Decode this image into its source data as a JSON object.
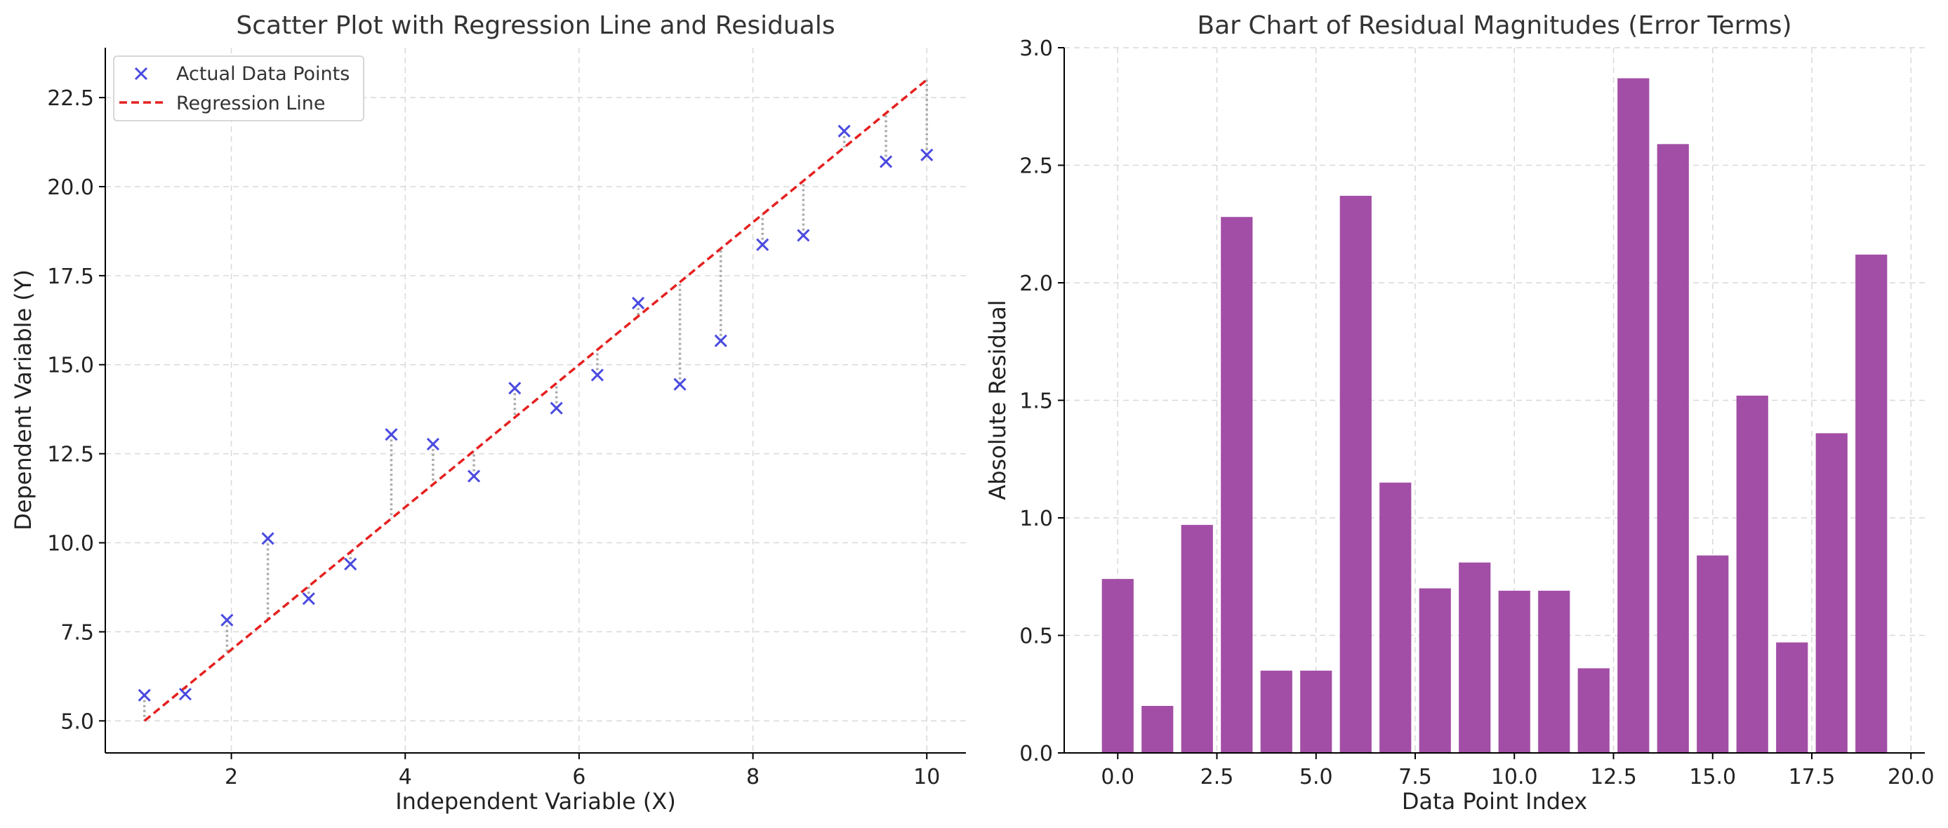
{
  "chart_data": [
    {
      "type": "scatter",
      "title": "Scatter Plot with Regression Line and Residuals",
      "xlabel": "Independent Variable (X)",
      "ylabel": "Dependent Variable (Y)",
      "xlim": [
        0.55,
        10.45
      ],
      "ylim": [
        4.1,
        23.9
      ],
      "xticks": [
        2,
        4,
        6,
        8,
        10
      ],
      "yticks": [
        5.0,
        7.5,
        10.0,
        12.5,
        15.0,
        17.5,
        20.0,
        22.5
      ],
      "grid": true,
      "legend_position": "upper-left",
      "series": [
        {
          "name": "Actual Data Points",
          "marker": "x",
          "color": "#4a4ae0",
          "x": [
            1.0,
            1.47,
            1.95,
            2.42,
            2.89,
            3.37,
            3.84,
            4.32,
            4.79,
            5.26,
            5.74,
            6.21,
            6.68,
            7.16,
            7.63,
            8.11,
            8.58,
            9.05,
            9.53,
            10.0
          ],
          "y": [
            5.72,
            5.75,
            7.83,
            10.12,
            8.43,
            9.4,
            13.04,
            12.77,
            11.87,
            14.34,
            13.78,
            14.71,
            16.73,
            14.45,
            15.67,
            18.37,
            18.63,
            21.56,
            20.7,
            20.89
          ]
        },
        {
          "name": "Regression Line",
          "style": "dashed",
          "color": "#e52020",
          "x": [
            1.0,
            10.0
          ],
          "y": [
            5.0,
            23.0
          ]
        }
      ],
      "residual_color": "#aaaaaa"
    },
    {
      "type": "bar",
      "title": "Bar Chart of Residual Magnitudes (Error Terms)",
      "xlabel": "Data Point Index",
      "ylabel": "Absolute Residual",
      "xlim": [
        -1.35,
        20.35
      ],
      "ylim": [
        0,
        3.0
      ],
      "xticks": [
        0.0,
        2.5,
        5.0,
        7.5,
        10.0,
        12.5,
        15.0,
        17.5,
        20.0
      ],
      "yticks": [
        0.0,
        0.5,
        1.0,
        1.5,
        2.0,
        2.5,
        3.0
      ],
      "grid": true,
      "color": "#a24ea6",
      "categories": [
        0,
        1,
        2,
        3,
        4,
        5,
        6,
        7,
        8,
        9,
        10,
        11,
        12,
        13,
        14,
        15,
        16,
        17,
        18,
        19
      ],
      "values": [
        0.74,
        0.2,
        0.97,
        2.28,
        0.35,
        0.35,
        2.37,
        1.15,
        0.7,
        0.81,
        0.69,
        0.69,
        0.36,
        2.87,
        2.59,
        0.84,
        1.52,
        0.47,
        1.36,
        2.12
      ]
    }
  ]
}
